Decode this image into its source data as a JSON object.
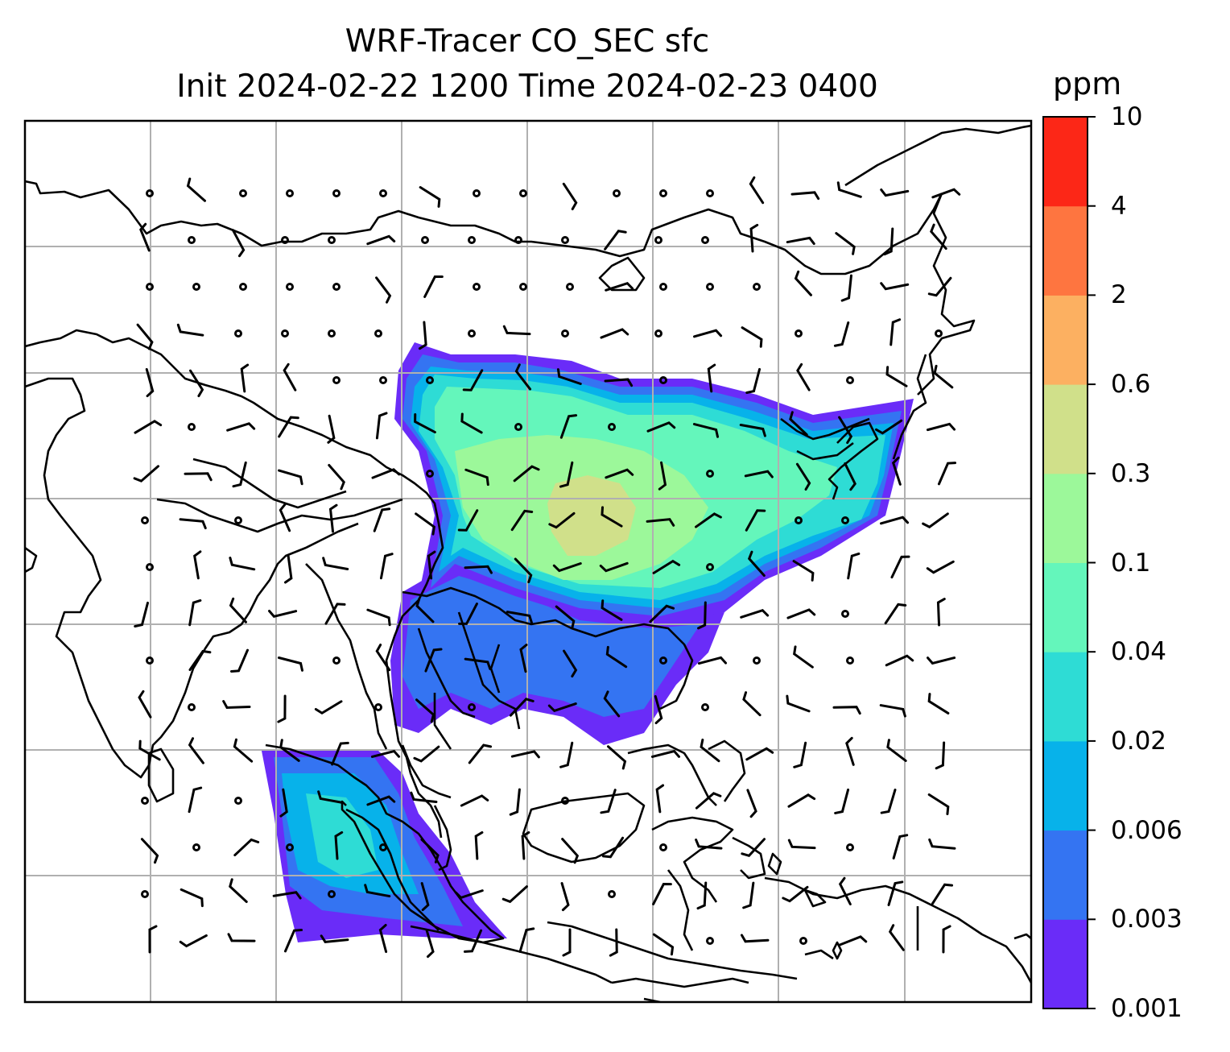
{
  "title_line1": "WRF-Tracer CO_SEC sfc",
  "title_line2": "Init 2024-02-22 1200 Time 2024-02-23 0400",
  "colorbar": {
    "unit": "ppm",
    "levels": [
      "0.001",
      "0.003",
      "0.006",
      "0.02",
      "0.04",
      "0.1",
      "0.3",
      "0.6",
      "2",
      "4",
      "10"
    ],
    "colors": [
      "#6a2cf8",
      "#3474f2",
      "#07b2ea",
      "#2edcd5",
      "#64f6bb",
      "#9cf89a",
      "#d0e08a",
      "#fcb061",
      "#fe7540",
      "#fc2717"
    ]
  },
  "map": {
    "gridlines": true,
    "coastline_color": "#000000",
    "barb_color": "#000000",
    "grid_color": "#b0b0b0"
  }
}
